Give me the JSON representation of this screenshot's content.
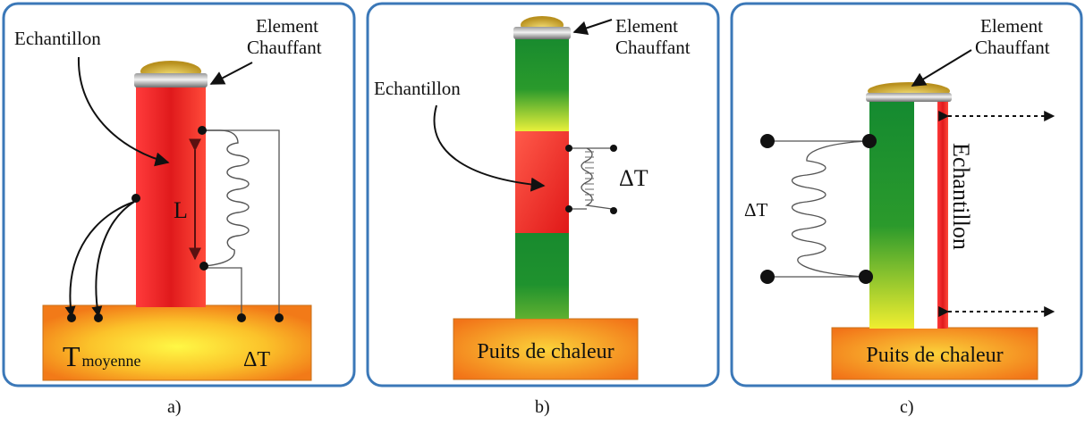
{
  "panels": {
    "a": {
      "caption": "a)",
      "sample_label": "Echantillon",
      "heater_label_line1": "Element",
      "heater_label_line2": "Chauffant",
      "length_label": "L",
      "tmean_T": "T",
      "tmean_sub": "moyenne",
      "delta_t_label": "ΔT"
    },
    "b": {
      "caption": "b)",
      "sample_label": "Echantillon",
      "heater_label_line1": "Element",
      "heater_label_line2": "Chauffant",
      "delta_t_label": "ΔT",
      "heat_sink_label": "Puits de chaleur"
    },
    "c": {
      "caption": "c)",
      "sample_label": "Echantillon",
      "heater_label_line1": "Element",
      "heater_label_line2": "Chauffant",
      "delta_t_label": "ΔT",
      "heat_sink_label": "Puits de chaleur"
    }
  },
  "colors": {
    "panel_border": "#3b78b8",
    "sample_red": "#e8282a",
    "reference_green": "#1a8a30",
    "sink_orange": "#f07a18",
    "sink_yellow": "#fff23a"
  }
}
